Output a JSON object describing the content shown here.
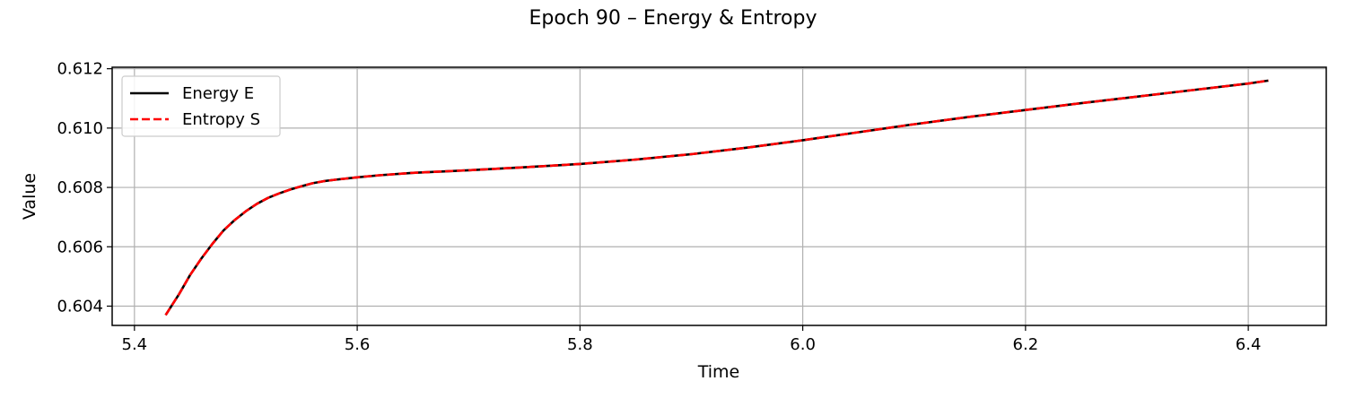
{
  "chart_data": {
    "type": "line",
    "title": "Epoch 90 – Energy & Entropy",
    "xlabel": "Time",
    "ylabel": "Value",
    "xlim": [
      5.38,
      6.47
    ],
    "ylim": [
      0.60335,
      0.61205
    ],
    "xticks": [
      {
        "value": 5.4,
        "label": "5.4"
      },
      {
        "value": 5.6,
        "label": "5.6"
      },
      {
        "value": 5.8,
        "label": "5.8"
      },
      {
        "value": 6.0,
        "label": "6.0"
      },
      {
        "value": 6.2,
        "label": "6.2"
      },
      {
        "value": 6.4,
        "label": "6.4"
      }
    ],
    "yticks": [
      {
        "value": 0.604,
        "label": "0.604"
      },
      {
        "value": 0.606,
        "label": "0.606"
      },
      {
        "value": 0.608,
        "label": "0.608"
      },
      {
        "value": 0.61,
        "label": "0.610"
      },
      {
        "value": 0.612,
        "label": "0.612"
      }
    ],
    "grid": true,
    "legend_position": "upper-left",
    "series": [
      {
        "name": "Energy E",
        "color": "#000000",
        "style": "solid",
        "x": [
          5.428,
          5.44,
          5.45,
          5.46,
          5.47,
          5.48,
          5.49,
          5.5,
          5.51,
          5.52,
          5.53,
          5.54,
          5.55,
          5.56,
          5.57,
          5.58,
          5.6,
          5.62,
          5.65,
          5.7,
          5.75,
          5.8,
          5.85,
          5.9,
          5.95,
          6.0,
          6.05,
          6.1,
          6.15,
          6.2,
          6.25,
          6.3,
          6.35,
          6.4,
          6.418
        ],
        "y": [
          0.6037,
          0.6044,
          0.60505,
          0.6056,
          0.6061,
          0.60655,
          0.6069,
          0.6072,
          0.60745,
          0.60765,
          0.6078,
          0.60793,
          0.60804,
          0.60814,
          0.60821,
          0.60826,
          0.60834,
          0.60841,
          0.60849,
          0.60858,
          0.60868,
          0.60879,
          0.60894,
          0.60912,
          0.60934,
          0.60959,
          0.60986,
          0.61013,
          0.61038,
          0.61061,
          0.61084,
          0.61106,
          0.61128,
          0.6115,
          0.6116
        ]
      },
      {
        "name": "Entropy S",
        "color": "#ff0000",
        "style": "dashed",
        "x": [
          5.428,
          5.44,
          5.45,
          5.46,
          5.47,
          5.48,
          5.49,
          5.5,
          5.51,
          5.52,
          5.53,
          5.54,
          5.55,
          5.56,
          5.57,
          5.58,
          5.6,
          5.62,
          5.65,
          5.7,
          5.75,
          5.8,
          5.85,
          5.9,
          5.95,
          6.0,
          6.05,
          6.1,
          6.15,
          6.2,
          6.25,
          6.3,
          6.35,
          6.4,
          6.418
        ],
        "y": [
          0.6037,
          0.6044,
          0.60505,
          0.6056,
          0.6061,
          0.60655,
          0.6069,
          0.6072,
          0.60745,
          0.60765,
          0.6078,
          0.60793,
          0.60804,
          0.60814,
          0.60821,
          0.60826,
          0.60834,
          0.60841,
          0.60849,
          0.60858,
          0.60868,
          0.60879,
          0.60894,
          0.60912,
          0.60934,
          0.60959,
          0.60986,
          0.61013,
          0.61038,
          0.61061,
          0.61084,
          0.61106,
          0.61128,
          0.6115,
          0.6116
        ]
      }
    ]
  }
}
